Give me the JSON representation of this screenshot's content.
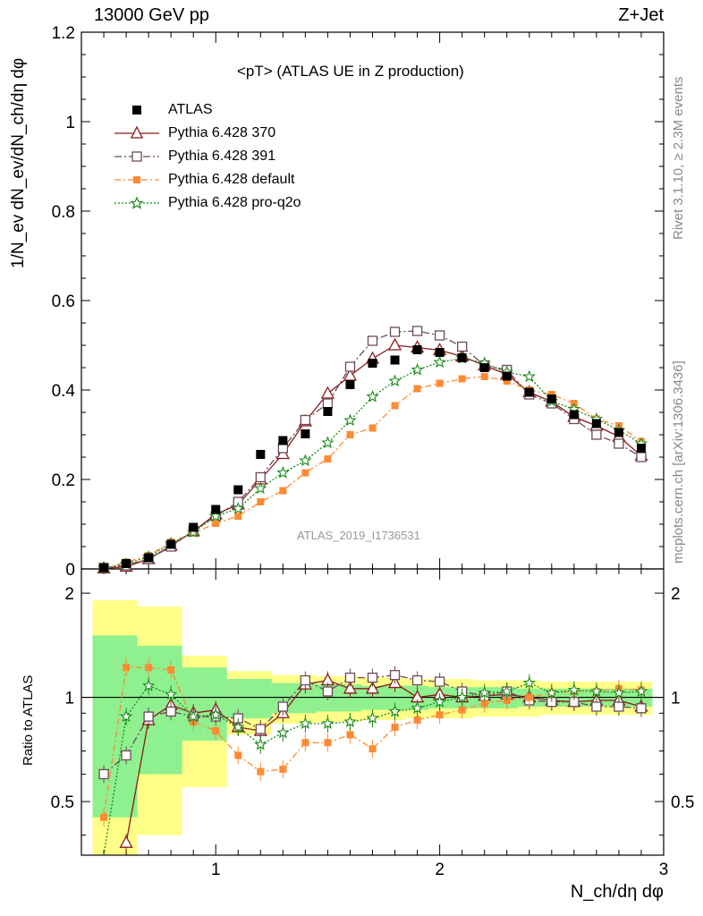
{
  "header": {
    "left": "13000 GeV pp",
    "right": "Z+Jet"
  },
  "side_labels": {
    "rivet": "Rivet 3.1.10, ≥ 2.3M events",
    "mcplots": "mcplots.cern.ch [arXiv:1306.3436]"
  },
  "colors": {
    "ATLAS": "#000000",
    "Pythia 6.428 370": "#8b1a1a",
    "Pythia 6.428 391": "#6e4a5a",
    "Pythia 6.428 default": "#ff8a33",
    "Pythia 6.428 pro-q2o": "#1a8a1a",
    "band_inner": "#8ef08e",
    "band_outer": "#ffff88"
  },
  "chart_data": {
    "type": "line",
    "title": "<pT> (ATLAS UE in Z production)",
    "analysis_id": "ATLAS_2019_I1736531",
    "xlabel": "N_ch/dη dφ",
    "ylabel": "1/N_ev dN_ev/dN_ch/dη dφ",
    "ratio_ylabel": "Ratio to ATLAS",
    "xlim": [
      0.4,
      3.0
    ],
    "ylim": [
      0,
      1.2
    ],
    "ratio_ylim": [
      0.35,
      2.35
    ],
    "grid": false,
    "legend_position": "top-left",
    "x_ticks": [
      1,
      2,
      3
    ],
    "y_ticks": [
      0,
      0.2,
      0.4,
      0.6,
      0.8,
      1,
      1.2
    ],
    "y_tick_labels": [
      "0",
      "0.2",
      "0.4",
      "0.6",
      "0.8",
      "1",
      "1.2"
    ],
    "ratio_y_ticks": [
      0.5,
      1,
      2
    ],
    "x": [
      0.5,
      0.6,
      0.7,
      0.8,
      0.9,
      1.0,
      1.1,
      1.2,
      1.3,
      1.4,
      1.5,
      1.6,
      1.7,
      1.8,
      1.9,
      2.0,
      2.1,
      2.2,
      2.3,
      2.4,
      2.5,
      2.6,
      2.7,
      2.8,
      2.9
    ],
    "series": [
      {
        "name": "ATLAS",
        "marker": "square-filled",
        "values": [
          0.003,
          0.012,
          0.025,
          0.055,
          0.093,
          0.133,
          0.177,
          0.256,
          0.287,
          0.302,
          0.352,
          0.412,
          0.46,
          0.467,
          0.49,
          0.484,
          0.472,
          0.45,
          0.431,
          0.395,
          0.38,
          0.345,
          0.325,
          0.305,
          0.27
        ]
      },
      {
        "name": "Pythia 6.428 370",
        "marker": "triangle-open",
        "values": [
          0.001,
          0.005,
          0.022,
          0.052,
          0.084,
          0.122,
          0.144,
          0.2,
          0.257,
          0.33,
          0.392,
          0.432,
          0.47,
          0.5,
          0.495,
          0.489,
          0.475,
          0.455,
          0.435,
          0.395,
          0.374,
          0.34,
          0.32,
          0.296,
          0.253
        ]
      },
      {
        "name": "Pythia 6.428 391",
        "marker": "square-open",
        "values": [
          0.002,
          0.008,
          0.022,
          0.05,
          0.085,
          0.118,
          0.15,
          0.205,
          0.27,
          0.333,
          0.37,
          0.452,
          0.51,
          0.53,
          0.532,
          0.522,
          0.497,
          0.455,
          0.445,
          0.39,
          0.37,
          0.335,
          0.3,
          0.28,
          0.25
        ]
      },
      {
        "name": "Pythia 6.428 default",
        "marker": "square-filled",
        "values": [
          0.001,
          0.015,
          0.03,
          0.06,
          0.08,
          0.102,
          0.118,
          0.15,
          0.175,
          0.215,
          0.246,
          0.3,
          0.315,
          0.365,
          0.403,
          0.415,
          0.425,
          0.43,
          0.42,
          0.4,
          0.39,
          0.37,
          0.335,
          0.32,
          0.285
        ]
      },
      {
        "name": "Pythia 6.428 pro-q2o",
        "marker": "star",
        "values": [
          0.002,
          0.011,
          0.027,
          0.057,
          0.082,
          0.118,
          0.135,
          0.18,
          0.215,
          0.242,
          0.282,
          0.332,
          0.385,
          0.42,
          0.445,
          0.462,
          0.471,
          0.46,
          0.44,
          0.43,
          0.375,
          0.357,
          0.335,
          0.31,
          0.28
        ]
      }
    ],
    "ratio_series": [
      {
        "name": "Pythia 6.428 370",
        "values": [
          null,
          0.38,
          0.86,
          0.95,
          0.9,
          0.92,
          0.82,
          0.8,
          0.9,
          1.09,
          1.12,
          1.06,
          1.06,
          1.1,
          1.0,
          1.02,
          1.0,
          1.01,
          1.02,
          1.0,
          0.98,
          0.97,
          0.98,
          0.98,
          0.94
        ]
      },
      {
        "name": "Pythia 6.428 391",
        "values": [
          0.6,
          0.68,
          0.88,
          0.91,
          0.88,
          0.88,
          0.87,
          0.81,
          0.94,
          1.12,
          1.04,
          1.14,
          1.14,
          1.16,
          1.12,
          1.11,
          1.04,
          1.01,
          1.04,
          0.98,
          0.97,
          0.97,
          0.94,
          0.94,
          0.93
        ]
      },
      {
        "name": "Pythia 6.428 default",
        "values": [
          0.45,
          1.22,
          1.22,
          1.2,
          0.85,
          0.8,
          0.68,
          0.61,
          0.62,
          0.74,
          0.74,
          0.78,
          0.71,
          0.82,
          0.86,
          0.89,
          0.92,
          0.96,
          0.98,
          1.0,
          1.03,
          1.04,
          1.04,
          1.06,
          1.05
        ]
      },
      {
        "name": "Pythia 6.428 pro-q2o",
        "values": [
          0.3,
          0.88,
          1.08,
          1.02,
          0.88,
          0.89,
          0.82,
          0.73,
          0.79,
          0.84,
          0.84,
          0.85,
          0.87,
          0.91,
          0.93,
          0.97,
          1.0,
          1.03,
          1.04,
          1.1,
          1.03,
          1.05,
          1.04,
          1.03,
          1.04
        ]
      }
    ],
    "ratio_band_inner": [
      [
        0.45,
        1.51
      ],
      [
        0.45,
        1.51
      ],
      [
        0.6,
        1.41
      ],
      [
        0.6,
        1.41
      ],
      [
        0.75,
        1.22
      ],
      [
        0.75,
        1.22
      ],
      [
        0.87,
        1.13
      ],
      [
        0.87,
        1.13
      ],
      [
        0.9,
        1.1
      ],
      [
        0.9,
        1.1
      ],
      [
        0.91,
        1.09
      ],
      [
        0.91,
        1.09
      ],
      [
        0.92,
        1.08
      ],
      [
        0.92,
        1.08
      ],
      [
        0.92,
        1.08
      ],
      [
        0.93,
        1.07
      ],
      [
        0.93,
        1.07
      ],
      [
        0.93,
        1.07
      ],
      [
        0.93,
        1.07
      ],
      [
        0.94,
        1.06
      ],
      [
        0.94,
        1.06
      ],
      [
        0.94,
        1.06
      ],
      [
        0.94,
        1.06
      ],
      [
        0.94,
        1.06
      ],
      [
        0.94,
        1.06
      ]
    ],
    "ratio_band_outer": [
      [
        0.35,
        1.91
      ],
      [
        0.35,
        1.91
      ],
      [
        0.4,
        1.83
      ],
      [
        0.4,
        1.83
      ],
      [
        0.55,
        1.32
      ],
      [
        0.55,
        1.32
      ],
      [
        0.78,
        1.19
      ],
      [
        0.78,
        1.19
      ],
      [
        0.84,
        1.16
      ],
      [
        0.84,
        1.16
      ],
      [
        0.85,
        1.15
      ],
      [
        0.85,
        1.15
      ],
      [
        0.86,
        1.14
      ],
      [
        0.86,
        1.14
      ],
      [
        0.87,
        1.13
      ],
      [
        0.87,
        1.13
      ],
      [
        0.87,
        1.13
      ],
      [
        0.88,
        1.12
      ],
      [
        0.88,
        1.12
      ],
      [
        0.88,
        1.12
      ],
      [
        0.89,
        1.11
      ],
      [
        0.89,
        1.11
      ],
      [
        0.89,
        1.11
      ],
      [
        0.89,
        1.11
      ],
      [
        0.89,
        1.11
      ]
    ]
  }
}
